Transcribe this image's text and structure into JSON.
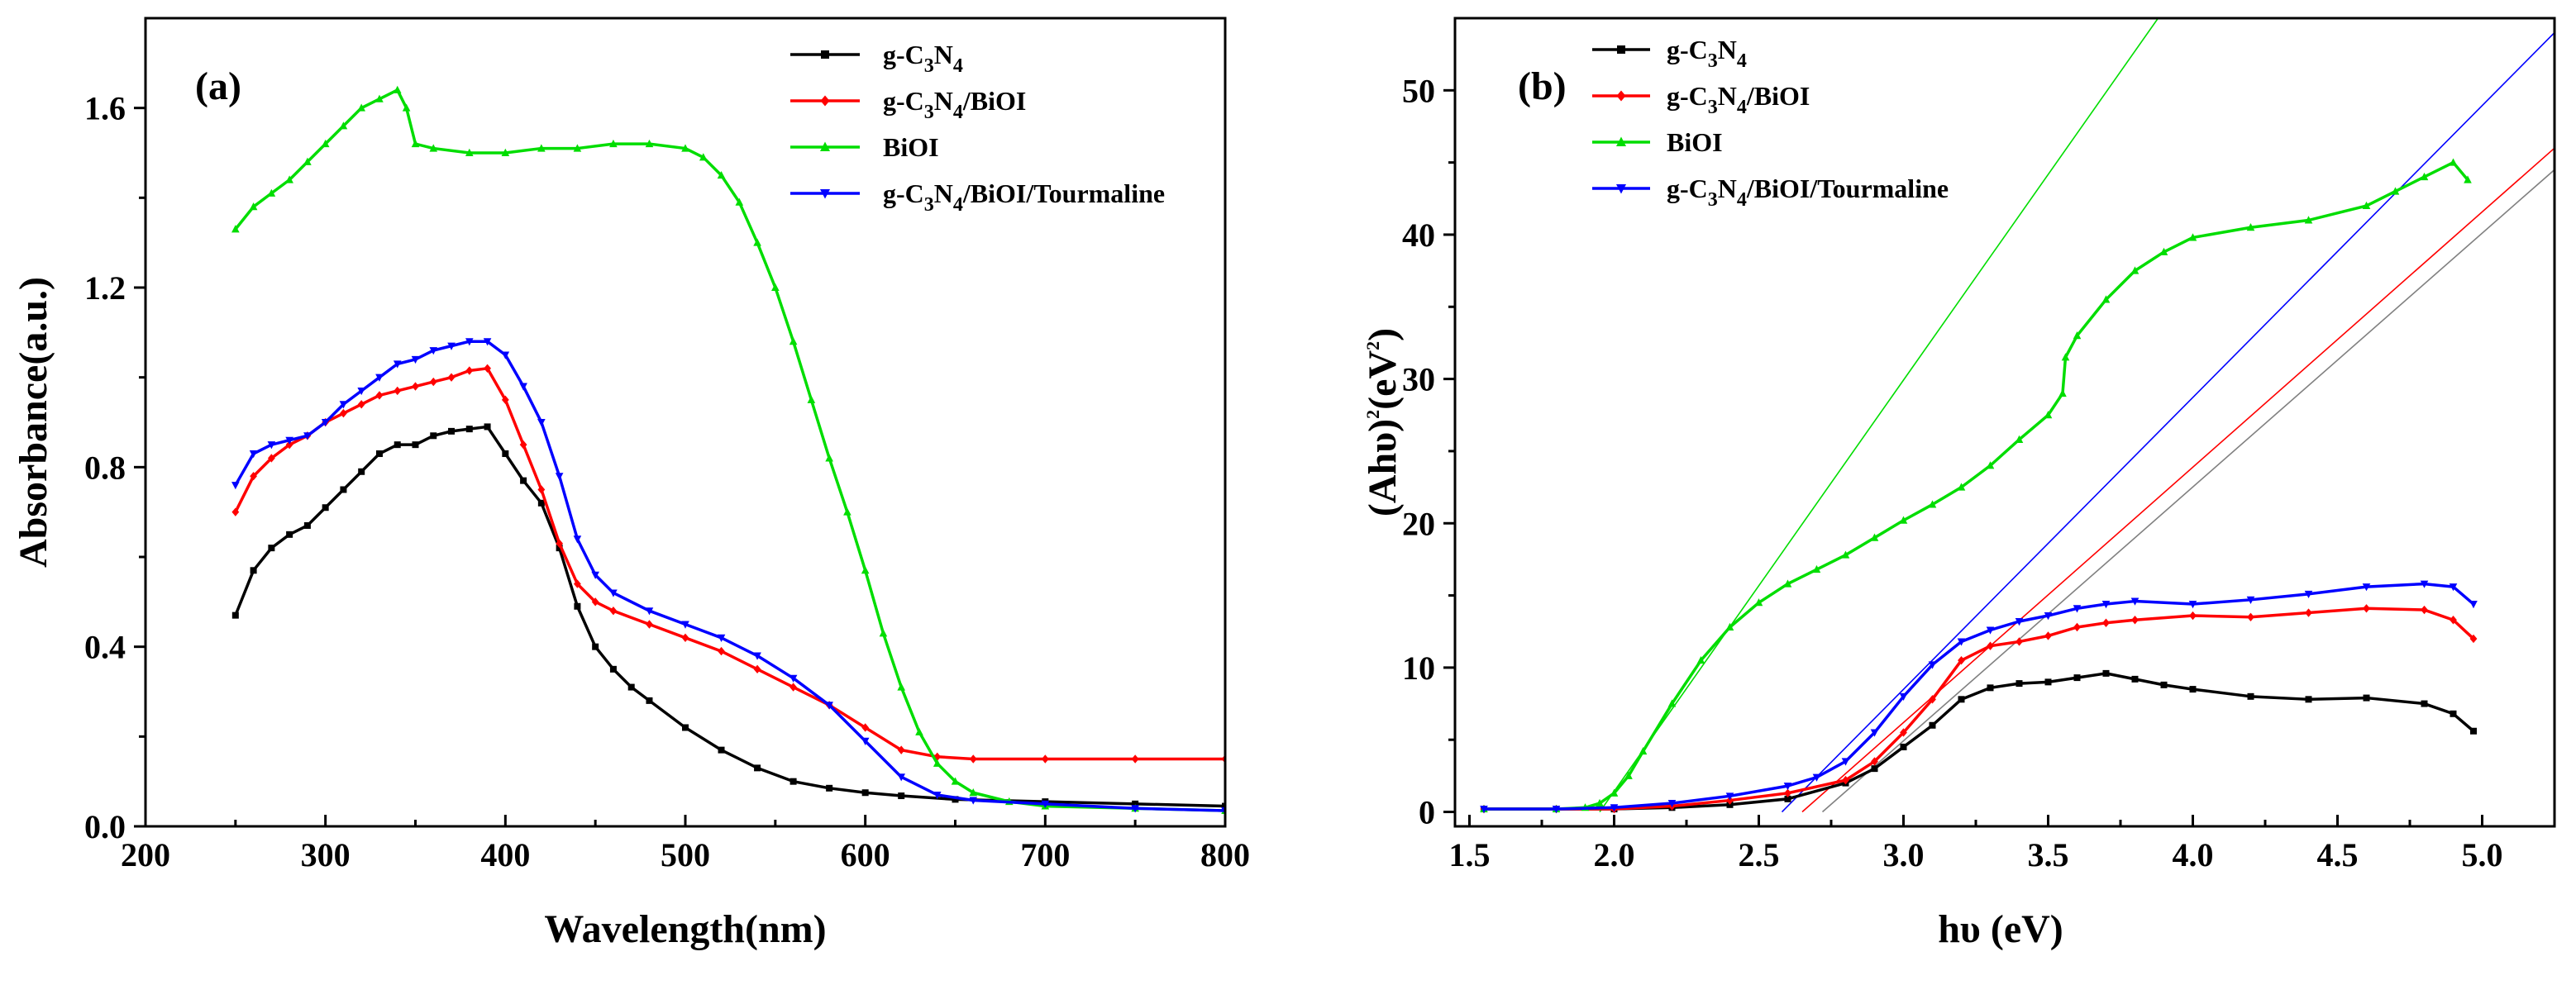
{
  "chart_data": [
    {
      "panel": "(a)",
      "type": "line",
      "xlabel": "Wavelength(nm)",
      "ylabel": "Absorbance(a.u.)",
      "xlim": [
        200,
        800
      ],
      "ylim": [
        0,
        1.8
      ],
      "xticks": [
        200,
        300,
        400,
        500,
        600,
        700,
        800
      ],
      "yticks": [
        0.0,
        0.4,
        0.8,
        1.2,
        1.6
      ],
      "xtick_labels": [
        "200",
        "300",
        "400",
        "500",
        "600",
        "700",
        "800"
      ],
      "ytick_labels": [
        "0.0",
        "0.4",
        "0.8",
        "1.2",
        "1.6"
      ],
      "legend_position": "top-right",
      "series": [
        {
          "name": "g-C3N4",
          "legend": {
            "pre": "g-C",
            "s1": "3",
            "mid": "N",
            "s2": "4",
            "post": ""
          },
          "color": "#000000",
          "marker": "square",
          "x": [
            250,
            260,
            270,
            280,
            290,
            300,
            310,
            320,
            330,
            340,
            350,
            360,
            370,
            380,
            390,
            400,
            410,
            420,
            430,
            440,
            450,
            460,
            470,
            480,
            500,
            520,
            540,
            560,
            580,
            600,
            620,
            650,
            700,
            750,
            800
          ],
          "y": [
            0.47,
            0.57,
            0.62,
            0.65,
            0.67,
            0.71,
            0.75,
            0.79,
            0.83,
            0.85,
            0.85,
            0.87,
            0.88,
            0.885,
            0.89,
            0.83,
            0.77,
            0.72,
            0.62,
            0.49,
            0.4,
            0.35,
            0.31,
            0.28,
            0.22,
            0.17,
            0.13,
            0.1,
            0.085,
            0.075,
            0.068,
            0.06,
            0.055,
            0.05,
            0.045
          ]
        },
        {
          "name": "g-C3N4/BiOI",
          "legend": {
            "pre": "g-C",
            "s1": "3",
            "mid": "N",
            "s2": "4",
            "post": "/BiOI"
          },
          "color": "#ff0000",
          "marker": "diamond",
          "x": [
            250,
            260,
            270,
            280,
            290,
            300,
            310,
            320,
            330,
            340,
            350,
            360,
            370,
            380,
            390,
            400,
            410,
            420,
            430,
            440,
            450,
            460,
            480,
            500,
            520,
            540,
            560,
            580,
            600,
            620,
            640,
            660,
            700,
            750,
            800
          ],
          "y": [
            0.7,
            0.78,
            0.82,
            0.85,
            0.87,
            0.9,
            0.92,
            0.94,
            0.96,
            0.97,
            0.98,
            0.99,
            1.0,
            1.015,
            1.02,
            0.95,
            0.85,
            0.75,
            0.63,
            0.54,
            0.5,
            0.48,
            0.45,
            0.42,
            0.39,
            0.35,
            0.31,
            0.27,
            0.22,
            0.17,
            0.155,
            0.15,
            0.15,
            0.15,
            0.15
          ]
        },
        {
          "name": "BiOI",
          "legend": {
            "pre": "BiOI",
            "s1": "",
            "mid": "",
            "s2": "",
            "post": ""
          },
          "color": "#00dd00",
          "marker": "triangle-up",
          "x": [
            250,
            260,
            270,
            280,
            290,
            300,
            310,
            320,
            330,
            340,
            345,
            350,
            360,
            380,
            400,
            420,
            440,
            460,
            480,
            500,
            510,
            520,
            530,
            540,
            550,
            560,
            570,
            580,
            590,
            600,
            610,
            620,
            630,
            640,
            650,
            660,
            680,
            700,
            750,
            800
          ],
          "y": [
            1.33,
            1.38,
            1.41,
            1.44,
            1.48,
            1.52,
            1.56,
            1.6,
            1.62,
            1.64,
            1.6,
            1.52,
            1.51,
            1.5,
            1.5,
            1.51,
            1.51,
            1.52,
            1.52,
            1.51,
            1.49,
            1.45,
            1.39,
            1.3,
            1.2,
            1.08,
            0.95,
            0.82,
            0.7,
            0.57,
            0.43,
            0.31,
            0.21,
            0.14,
            0.1,
            0.075,
            0.055,
            0.045,
            0.04,
            0.035
          ]
        },
        {
          "name": "g-C3N4/BiOI/Tourmaline",
          "legend": {
            "pre": "g-C",
            "s1": "3",
            "mid": "N",
            "s2": "4",
            "post": "/BiOI/Tourmaline"
          },
          "color": "#0000ff",
          "marker": "triangle-down",
          "x": [
            250,
            260,
            270,
            280,
            290,
            300,
            310,
            320,
            330,
            340,
            350,
            360,
            370,
            380,
            390,
            400,
            410,
            420,
            430,
            440,
            450,
            460,
            480,
            500,
            520,
            540,
            560,
            580,
            600,
            620,
            640,
            660,
            700,
            750,
            800
          ],
          "y": [
            0.76,
            0.83,
            0.85,
            0.86,
            0.87,
            0.9,
            0.94,
            0.97,
            1.0,
            1.03,
            1.04,
            1.06,
            1.07,
            1.08,
            1.08,
            1.05,
            0.98,
            0.9,
            0.78,
            0.64,
            0.56,
            0.52,
            0.48,
            0.45,
            0.42,
            0.38,
            0.33,
            0.27,
            0.19,
            0.11,
            0.07,
            0.058,
            0.05,
            0.04,
            0.035
          ]
        }
      ]
    },
    {
      "panel": "(b)",
      "type": "line",
      "xlabel": "hυ (eV)",
      "ylabel": {
        "pre": "(Ahυ)",
        "sup1": "2",
        "mid": "(eV",
        "sup2": "2",
        "post": ")"
      },
      "xlim": [
        1.45,
        5.25
      ],
      "ylim": [
        -1,
        55
      ],
      "xticks": [
        1.5,
        2.0,
        2.5,
        3.0,
        3.5,
        4.0,
        4.5,
        5.0
      ],
      "yticks": [
        0,
        10,
        20,
        30,
        40,
        50
      ],
      "xtick_labels": [
        "1.5",
        "2.0",
        "2.5",
        "3.0",
        "3.5",
        "4.0",
        "4.5",
        "5.0"
      ],
      "ytick_labels": [
        "0",
        "10",
        "20",
        "30",
        "40",
        "50"
      ],
      "legend_position": "top-left",
      "series": [
        {
          "name": "g-C3N4",
          "legend": {
            "pre": "g-C",
            "s1": "3",
            "mid": "N",
            "s2": "4",
            "post": ""
          },
          "color": "#000000",
          "marker": "square",
          "x": [
            1.55,
            1.8,
            2.0,
            2.2,
            2.4,
            2.6,
            2.8,
            2.9,
            3.0,
            3.1,
            3.2,
            3.3,
            3.4,
            3.5,
            3.6,
            3.7,
            3.8,
            3.9,
            4.0,
            4.2,
            4.4,
            4.6,
            4.8,
            4.9,
            4.97
          ],
          "y": [
            0.2,
            0.2,
            0.2,
            0.3,
            0.5,
            0.9,
            2.0,
            3.0,
            4.5,
            6.0,
            7.8,
            8.6,
            8.9,
            9.0,
            9.3,
            9.6,
            9.2,
            8.8,
            8.5,
            8.0,
            7.8,
            7.9,
            7.5,
            6.8,
            5.6
          ]
        },
        {
          "name": "g-C3N4/BiOI",
          "legend": {
            "pre": "g-C",
            "s1": "3",
            "mid": "N",
            "s2": "4",
            "post": "/BiOI"
          },
          "color": "#ff0000",
          "marker": "diamond",
          "x": [
            1.55,
            1.8,
            2.0,
            2.2,
            2.4,
            2.6,
            2.8,
            2.9,
            3.0,
            3.1,
            3.2,
            3.3,
            3.4,
            3.5,
            3.6,
            3.7,
            3.8,
            4.0,
            4.2,
            4.4,
            4.6,
            4.8,
            4.9,
            4.97
          ],
          "y": [
            0.2,
            0.2,
            0.2,
            0.4,
            0.8,
            1.3,
            2.2,
            3.5,
            5.5,
            7.8,
            10.5,
            11.5,
            11.8,
            12.2,
            12.8,
            13.1,
            13.3,
            13.6,
            13.5,
            13.8,
            14.1,
            14.0,
            13.3,
            12.0
          ]
        },
        {
          "name": "BiOI",
          "legend": {
            "pre": "BiOI",
            "s1": "",
            "mid": "",
            "s2": "",
            "post": ""
          },
          "color": "#00dd00",
          "marker": "triangle-up",
          "x": [
            1.55,
            1.8,
            1.9,
            1.95,
            2.0,
            2.05,
            2.1,
            2.2,
            2.3,
            2.4,
            2.5,
            2.6,
            2.7,
            2.8,
            2.9,
            3.0,
            3.1,
            3.2,
            3.3,
            3.4,
            3.5,
            3.55,
            3.56,
            3.6,
            3.7,
            3.8,
            3.9,
            4.0,
            4.2,
            4.4,
            4.6,
            4.7,
            4.8,
            4.9,
            4.95
          ],
          "y": [
            0.2,
            0.2,
            0.3,
            0.6,
            1.3,
            2.5,
            4.2,
            7.5,
            10.5,
            12.8,
            14.5,
            15.8,
            16.8,
            17.8,
            19.0,
            20.2,
            21.3,
            22.5,
            24.0,
            25.8,
            27.5,
            29.0,
            31.5,
            33.0,
            35.5,
            37.5,
            38.8,
            39.8,
            40.5,
            41.0,
            42.0,
            43.0,
            44.0,
            45.0,
            43.8
          ]
        },
        {
          "name": "g-C3N4/BiOI/Tourmaline",
          "legend": {
            "pre": "g-C",
            "s1": "3",
            "mid": "N",
            "s2": "4",
            "post": "/BiOI/Tourmaline"
          },
          "color": "#0000ff",
          "marker": "triangle-down",
          "x": [
            1.55,
            1.8,
            2.0,
            2.2,
            2.4,
            2.6,
            2.7,
            2.8,
            2.9,
            3.0,
            3.1,
            3.2,
            3.3,
            3.4,
            3.5,
            3.6,
            3.7,
            3.8,
            4.0,
            4.2,
            4.4,
            4.6,
            4.8,
            4.9,
            4.97
          ],
          "y": [
            0.2,
            0.2,
            0.3,
            0.6,
            1.1,
            1.8,
            2.4,
            3.5,
            5.5,
            8.0,
            10.2,
            11.8,
            12.6,
            13.2,
            13.6,
            14.1,
            14.4,
            14.6,
            14.4,
            14.7,
            15.1,
            15.6,
            15.8,
            15.6,
            14.4
          ]
        }
      ],
      "tangent_lines": [
        {
          "series": "BiOI",
          "color": "#00dd00",
          "x": [
            1.95,
            3.88
          ],
          "y": [
            0.0,
            55.0
          ]
        },
        {
          "series": "g-C3N4/BiOI/Tourmaline",
          "color": "#0000ff",
          "x": [
            2.58,
            5.25
          ],
          "y": [
            0.0,
            54.0
          ]
        },
        {
          "series": "g-C3N4/BiOI",
          "color": "#ff0000",
          "x": [
            2.65,
            5.25
          ],
          "y": [
            0.0,
            46.0
          ]
        },
        {
          "series": "g-C3N4",
          "color": "#808080",
          "x": [
            2.72,
            5.25
          ],
          "y": [
            0.0,
            44.5
          ]
        }
      ]
    }
  ]
}
